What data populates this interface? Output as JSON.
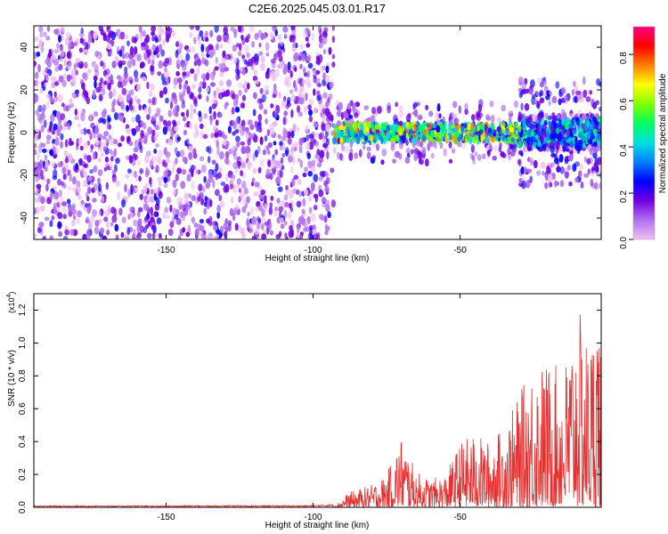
{
  "title": "C2E6.2025.045.03.01.R17",
  "chart_data": [
    {
      "type": "heatmap",
      "xlabel": "Height of straight line (km)",
      "ylabel": "Frequency (Hz)",
      "xlim": [
        -195,
        -2
      ],
      "ylim": [
        -50,
        50
      ],
      "x_ticks": [
        -150,
        -100,
        -50
      ],
      "y_ticks": [
        -40,
        -20,
        0,
        20,
        40
      ],
      "colorbar": {
        "label": "Normalized spectral amplitude",
        "range": [
          0.0,
          0.92
        ],
        "ticks": [
          0.0,
          0.2,
          0.4,
          0.6,
          0.8
        ],
        "colors": [
          "#f0c0f0",
          "#b070f0",
          "#7000e0",
          "#0000ff",
          "#0080ff",
          "#00e0e0",
          "#00ff60",
          "#80ff00",
          "#ffff00",
          "#ff8000",
          "#ff0000",
          "#ff0080"
        ]
      },
      "regions": [
        {
          "x_range": [
            -195,
            -93
          ],
          "description_level": 0.12,
          "freq_spread": [
            -50,
            50
          ]
        },
        {
          "x_range": [
            -93,
            -30
          ],
          "description_level": 0.45,
          "freq_center": 0,
          "freq_spread": [
            -5,
            5
          ]
        },
        {
          "x_range": [
            -30,
            -2
          ],
          "description_level": 0.3,
          "freq_center": 0,
          "freq_spread": [
            -15,
            15
          ]
        }
      ]
    },
    {
      "type": "line",
      "xlabel": "Height of straight line (km)",
      "ylabel": "SNR (10 * v/v)",
      "ymultiplier": "(x10",
      "ymultiplier_exp": "4",
      "ymultiplier_close": ")",
      "xlim": [
        -195,
        -2
      ],
      "ylim": [
        0,
        1.3
      ],
      "x_ticks": [
        -150,
        -100,
        -50
      ],
      "y_ticks": [
        0.0,
        0.2,
        0.4,
        0.6,
        0.8,
        1.0,
        1.2
      ],
      "y_tick_labels": [
        "0.0",
        "0.2",
        "0.4",
        "0.6",
        "0.8",
        "1.0",
        "1.2"
      ],
      "color": "#e83030",
      "envelope": [
        {
          "x": -195,
          "y": 0.01
        },
        {
          "x": -100,
          "y": 0.012
        },
        {
          "x": -92,
          "y": 0.02
        },
        {
          "x": -88,
          "y": 0.09
        },
        {
          "x": -80,
          "y": 0.14
        },
        {
          "x": -75,
          "y": 0.2
        },
        {
          "x": -70,
          "y": 0.44
        },
        {
          "x": -65,
          "y": 0.22
        },
        {
          "x": -60,
          "y": 0.17
        },
        {
          "x": -55,
          "y": 0.2
        },
        {
          "x": -50,
          "y": 0.4
        },
        {
          "x": -45,
          "y": 0.45
        },
        {
          "x": -40,
          "y": 0.4
        },
        {
          "x": -35,
          "y": 0.5
        },
        {
          "x": -30,
          "y": 0.68
        },
        {
          "x": -25,
          "y": 0.9
        },
        {
          "x": -20,
          "y": 0.88
        },
        {
          "x": -15,
          "y": 0.85
        },
        {
          "x": -10,
          "y": 1.22
        },
        {
          "x": -6,
          "y": 1.0
        },
        {
          "x": -3,
          "y": 1.3
        },
        {
          "x": -2,
          "y": 0.9
        }
      ]
    }
  ]
}
